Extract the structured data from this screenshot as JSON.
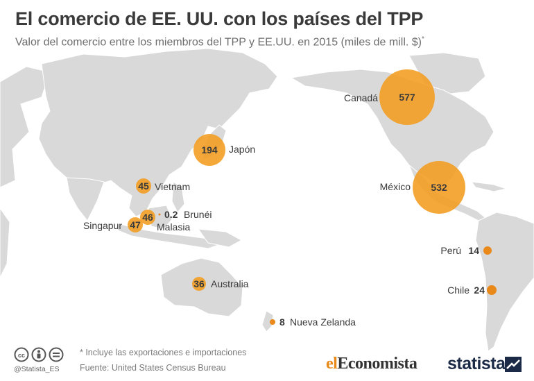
{
  "header": {
    "title": "El comercio de EE. UU. con los países del TPP",
    "subtitle": "Valor del comercio entre los miembros del TPP y EE.UU. en 2015 (miles de mill. $)",
    "subtitle_mark": "*"
  },
  "map_data": {
    "countries": [
      {
        "name": "Canadá",
        "value": "577"
      },
      {
        "name": "México",
        "value": "532"
      },
      {
        "name": "Japón",
        "value": "194"
      },
      {
        "name": "Vietnam",
        "value": "45"
      },
      {
        "name": "Malasia",
        "value": "46"
      },
      {
        "name": "Singapur",
        "value": "47"
      },
      {
        "name": "Brunéi",
        "value": "0.2"
      },
      {
        "name": "Australia",
        "value": "36"
      },
      {
        "name": "Nueva Zelanda",
        "value": "8"
      },
      {
        "name": "Perú",
        "value": "14"
      },
      {
        "name": "Chile",
        "value": "24"
      }
    ],
    "bubble_color": "#f39c1f",
    "land_color": "#d9d9d9"
  },
  "footer": {
    "note": "* Incluye las exportaciones e importaciones",
    "source": "Fuente: United States Census Bureau",
    "handle": "@Statista_ES",
    "logo_partner": "elEconomista",
    "logo_partner_prefix": "el",
    "logo_partner_rest": "Economista",
    "logo_statista": "statista",
    "icons": [
      "cc-icon",
      "person-icon",
      "equals-icon",
      "statista-logo-icon"
    ]
  }
}
